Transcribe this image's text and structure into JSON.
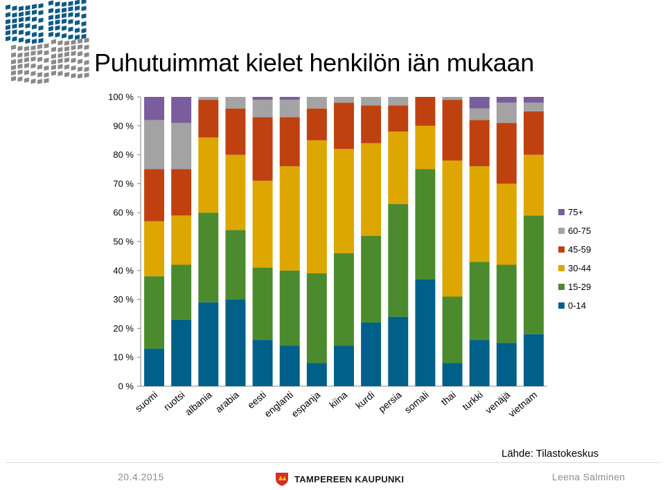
{
  "slide": {
    "title": "Puhutuimmat kielet henkilön iän mukaan",
    "source": "Lähde: Tilastokeskus",
    "date": "20.4.2015",
    "author": "Leena Salminen",
    "city_logo_text": "TAMPEREEN KAUPUNKI"
  },
  "chart_data": {
    "type": "bar",
    "stacked": true,
    "percent": true,
    "categories": [
      "suomi",
      "ruotsi",
      "albania",
      "arabia",
      "eesti",
      "englanti",
      "espanja",
      "kiina",
      "kurdi",
      "persia",
      "somali",
      "thai",
      "turkki",
      "venäjä",
      "vietnam"
    ],
    "series": [
      {
        "name": "0-14",
        "color": "#006089",
        "values": [
          13,
          23,
          29,
          30,
          16,
          14,
          8,
          14,
          22,
          24,
          37,
          8,
          16,
          15,
          18
        ]
      },
      {
        "name": "15-29",
        "color": "#4b8b2e",
        "values": [
          25,
          19,
          31,
          24,
          25,
          26,
          31,
          32,
          30,
          39,
          38,
          23,
          27,
          27,
          41
        ]
      },
      {
        "name": "30-44",
        "color": "#dea600",
        "values": [
          19,
          17,
          26,
          26,
          30,
          36,
          46,
          36,
          32,
          25,
          15,
          47,
          33,
          28,
          21
        ]
      },
      {
        "name": "45-59",
        "color": "#bf4110",
        "values": [
          18,
          16,
          13,
          16,
          22,
          17,
          11,
          16,
          13,
          9,
          10,
          21,
          16,
          21,
          15
        ]
      },
      {
        "name": "60-75",
        "color": "#a3a3a3",
        "values": [
          17,
          16,
          1,
          4,
          6,
          6,
          4,
          2,
          3,
          3,
          0,
          1,
          4,
          7,
          3
        ]
      },
      {
        "name": "75+",
        "color": "#7a5d9c",
        "values": [
          8,
          9,
          0,
          0,
          1,
          1,
          0,
          0,
          0,
          0,
          0,
          0,
          4,
          2,
          2
        ]
      }
    ],
    "yticks": [
      "0 %",
      "10 %",
      "20 %",
      "30 %",
      "40 %",
      "50 %",
      "60 %",
      "70 %",
      "80 %",
      "90 %",
      "100 %"
    ],
    "ylim": [
      0,
      100
    ],
    "legend_position": "right",
    "grid": false
  },
  "colors": {
    "logo_blue": "#0e5a86",
    "logo_grey": "#8a8a8a",
    "city_red": "#d12e2e",
    "city_yellow": "#f2c200"
  }
}
